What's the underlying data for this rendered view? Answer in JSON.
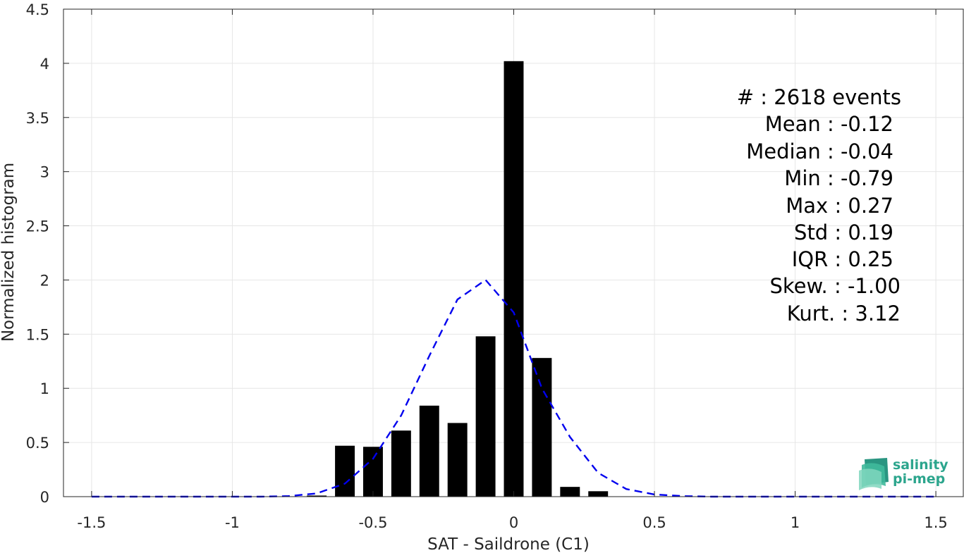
{
  "chart_data": {
    "type": "bar",
    "xlabel": "SAT - Saildrone (C1)",
    "ylabel": "Normalized histogram",
    "xlim": [
      -1.6,
      1.6
    ],
    "ylim": [
      0,
      4.5
    ],
    "grid": true,
    "xticks": [
      -1.5,
      -1,
      -0.5,
      0,
      0.5,
      1,
      1.5
    ],
    "xtick_labels": [
      "-1.5",
      "-1",
      "-0.5",
      "0",
      "0.5",
      "1",
      "1.5"
    ],
    "yticks": [
      0,
      0.5,
      1,
      1.5,
      2,
      2.5,
      3,
      3.5,
      4,
      4.5
    ],
    "ytick_labels": [
      "0",
      "0.5",
      "1",
      "1.5",
      "2",
      "2.5",
      "3",
      "3.5",
      "4",
      "4.5"
    ],
    "bar_width": 0.07,
    "bars": {
      "x": [
        -0.7,
        -0.6,
        -0.5,
        -0.4,
        -0.3,
        -0.2,
        -0.1,
        0.0,
        0.1,
        0.2,
        0.3
      ],
      "values": [
        0.01,
        0.47,
        0.46,
        0.61,
        0.84,
        0.68,
        1.48,
        4.02,
        1.28,
        0.09,
        0.05
      ],
      "color": "#000000"
    },
    "fit_curve": {
      "style": "dashed",
      "color": "#0000ee",
      "x": [
        -1.5,
        -1.4,
        -1.3,
        -1.2,
        -1.1,
        -1.0,
        -0.9,
        -0.8,
        -0.7,
        -0.6,
        -0.5,
        -0.4,
        -0.3,
        -0.2,
        -0.1,
        0.0,
        0.1,
        0.2,
        0.3,
        0.4,
        0.5,
        0.6,
        0.7,
        0.8,
        0.9,
        1.0,
        1.1,
        1.2,
        1.3,
        1.4,
        1.5
      ],
      "y": [
        0.0,
        0.0,
        0.0,
        0.0,
        0.0,
        0.0,
        0.0,
        0.005,
        0.03,
        0.12,
        0.35,
        0.75,
        1.3,
        1.82,
        2.0,
        1.7,
        1.0,
        0.55,
        0.22,
        0.07,
        0.02,
        0.005,
        0.0,
        0.0,
        0.0,
        0.0,
        0.0,
        0.0,
        0.0,
        0.0,
        0.0
      ]
    },
    "stats_box": [
      "#  : 2618 events",
      "Mean : -0.12",
      "Median : -0.04",
      "Min : -0.79",
      "Max : 0.27",
      "Std : 0.19",
      "IQR : 0.25",
      "Skew. : -1.00",
      "Kurt. : 3.12"
    ]
  },
  "logo": {
    "line1": "salinity",
    "line2": "pi-mep",
    "color": "#2ca58d"
  }
}
